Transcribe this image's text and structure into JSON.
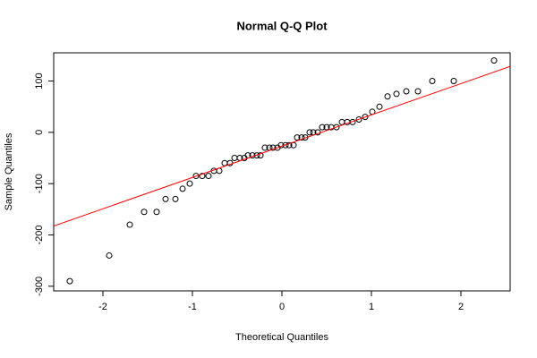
{
  "chart_data": {
    "type": "scatter",
    "title": "Normal Q-Q Plot",
    "x_label": "Theoretical Quantiles",
    "y_label": "Sample Quantiles",
    "x": [
      -2.37,
      -1.93,
      -1.7,
      -1.54,
      -1.4,
      -1.3,
      -1.19,
      -1.11,
      -1.03,
      -0.96,
      -0.89,
      -0.82,
      -0.76,
      -0.7,
      -0.64,
      -0.58,
      -0.53,
      -0.47,
      -0.42,
      -0.38,
      -0.33,
      -0.28,
      -0.24,
      -0.19,
      -0.14,
      -0.1,
      -0.05,
      -0.01,
      0.04,
      0.08,
      0.13,
      0.17,
      0.22,
      0.26,
      0.31,
      0.35,
      0.4,
      0.45,
      0.5,
      0.55,
      0.61,
      0.67,
      0.73,
      0.79,
      0.86,
      0.93,
      1.01,
      1.09,
      1.18,
      1.28,
      1.39,
      1.52,
      1.68,
      1.92,
      2.37
    ],
    "y": [
      -290,
      -240,
      -180,
      -155,
      -155,
      -130,
      -130,
      -110,
      -100,
      -85,
      -85,
      -85,
      -75,
      -75,
      -60,
      -60,
      -50,
      -50,
      -50,
      -45,
      -45,
      -45,
      -45,
      -30,
      -30,
      -30,
      -30,
      -25,
      -25,
      -25,
      -25,
      -10,
      -10,
      -10,
      0,
      0,
      0,
      10,
      10,
      10,
      10,
      20,
      20,
      20,
      25,
      30,
      40,
      50,
      70,
      75,
      80,
      80,
      100,
      100,
      140
    ],
    "point_color": "#000000",
    "abline": {
      "intercept": -27,
      "slope": 61,
      "color": "#ff0000"
    },
    "xlim": [
      -2.55,
      2.55
    ],
    "ylim": [
      -309,
      155
    ],
    "xticks": [
      -2,
      -1,
      0,
      1,
      2
    ],
    "yticks": [
      -300,
      -200,
      -100,
      0,
      100
    ]
  }
}
